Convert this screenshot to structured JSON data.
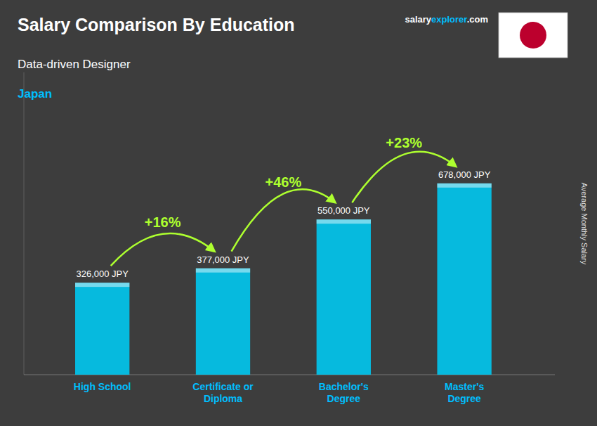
{
  "chart_data": {
    "type": "bar",
    "title": "Salary Comparison By Education",
    "subtitle": "Data-driven Designer",
    "country": "Japan",
    "source": [
      "salary",
      "explorer",
      ".com"
    ],
    "y_label": "Average Monthly Salary",
    "categories": [
      "High School",
      "Certificate or\nDiploma",
      "Bachelor's\nDegree",
      "Master's\nDegree"
    ],
    "values": [
      326000,
      377000,
      550000,
      678000
    ],
    "value_labels": [
      "326,000 JPY",
      "377,000 JPY",
      "550,000 JPY",
      "678,000 JPY"
    ],
    "data_labels": true,
    "annotations": [
      "+16%",
      "+46%",
      "+23%"
    ],
    "color": "#00c8f0",
    "ylim": [
      0,
      1071240
    ],
    "yticks": [],
    "tick_labels": "x",
    "grid": false
  }
}
